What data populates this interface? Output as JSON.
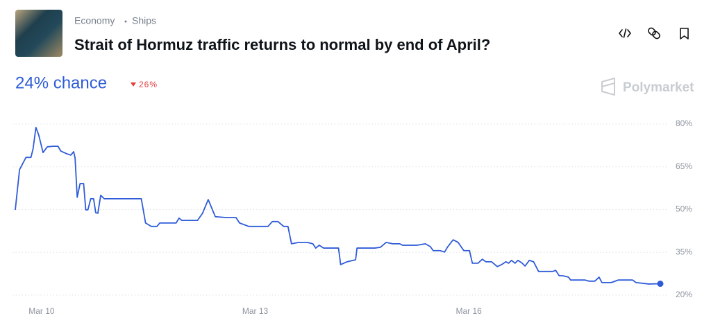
{
  "breadcrumbs": [
    "Economy",
    "Ships"
  ],
  "brand": "Polymarket",
  "chart_data": {
    "type": "line",
    "title": "Strait of Hormuz traffic returns to normal by end of April?",
    "current": {
      "value": 24,
      "label": "24% chance"
    },
    "change": {
      "value": 26,
      "label": "26%",
      "direction": "down"
    },
    "color": "#2e5bd8",
    "grid": true,
    "xlim": [
      9.63,
      18.69
    ],
    "xticks": [
      {
        "value": 10,
        "label": "Mar 10"
      },
      {
        "value": 13,
        "label": "Mar 13"
      },
      {
        "value": 16,
        "label": "Mar 16"
      }
    ],
    "ylim": [
      20,
      80
    ],
    "yticks": [
      {
        "value": 20,
        "label": "20%"
      },
      {
        "value": 35,
        "label": "35%"
      },
      {
        "value": 50,
        "label": "50%"
      },
      {
        "value": 65,
        "label": "65%"
      },
      {
        "value": 80,
        "label": "80%"
      }
    ],
    "x": [
      9.63,
      9.69,
      9.73,
      9.78,
      9.85,
      9.88,
      9.92,
      9.96,
      10.02,
      10.08,
      10.16,
      10.23,
      10.27,
      10.35,
      10.41,
      10.45,
      10.47,
      10.5,
      10.54,
      10.59,
      10.62,
      10.65,
      10.69,
      10.73,
      10.76,
      10.79,
      10.83,
      10.88,
      11.12,
      11.37,
      11.4,
      11.46,
      11.54,
      11.62,
      11.66,
      11.89,
      11.93,
      11.97,
      12.19,
      12.26,
      12.34,
      12.38,
      12.44,
      12.59,
      12.73,
      12.78,
      12.91,
      13.18,
      13.24,
      13.32,
      13.4,
      13.46,
      13.51,
      13.61,
      13.73,
      13.81,
      13.85,
      13.9,
      13.96,
      14.17,
      14.2,
      14.29,
      14.41,
      14.43,
      14.68,
      14.76,
      14.84,
      14.93,
      15.03,
      15.07,
      15.27,
      15.39,
      15.46,
      15.5,
      15.6,
      15.66,
      15.7,
      15.78,
      15.85,
      15.93,
      16.01,
      16.05,
      16.13,
      16.19,
      16.24,
      16.32,
      16.4,
      16.46,
      16.52,
      16.56,
      16.6,
      16.65,
      16.69,
      16.75,
      16.79,
      16.85,
      16.91,
      16.98,
      17.12,
      17.18,
      17.22,
      17.27,
      17.32,
      17.4,
      17.43,
      17.63,
      17.69,
      17.77,
      17.83,
      17.87,
      18.0,
      18.1,
      18.3,
      18.35,
      18.53,
      18.69
    ],
    "values": [
      49.9,
      64.0,
      65.9,
      68.3,
      68.3,
      71.3,
      78.8,
      76.1,
      70.0,
      72.0,
      72.2,
      72.2,
      70.5,
      69.6,
      69.1,
      70.3,
      68.1,
      54.3,
      59.1,
      59.1,
      49.9,
      49.9,
      53.8,
      53.8,
      48.9,
      48.7,
      55.0,
      53.8,
      53.8,
      53.8,
      53.8,
      45.3,
      44.1,
      44.1,
      45.3,
      45.3,
      47.0,
      46.2,
      46.2,
      48.7,
      53.5,
      51.1,
      47.5,
      47.2,
      47.2,
      45.3,
      44.1,
      44.1,
      45.8,
      45.8,
      44.1,
      44.1,
      38.0,
      38.5,
      38.5,
      38.0,
      36.5,
      37.5,
      36.5,
      36.5,
      30.7,
      31.7,
      32.4,
      36.5,
      36.5,
      36.8,
      38.5,
      38.0,
      38.0,
      37.5,
      37.5,
      38.0,
      37.0,
      35.6,
      35.6,
      35.1,
      36.8,
      39.4,
      38.5,
      35.6,
      35.6,
      31.2,
      31.2,
      32.6,
      31.7,
      31.7,
      30.0,
      30.7,
      31.7,
      31.2,
      32.2,
      31.2,
      32.2,
      31.2,
      30.2,
      32.2,
      31.7,
      28.3,
      28.3,
      28.3,
      28.7,
      26.8,
      26.8,
      26.3,
      25.3,
      25.3,
      24.9,
      24.9,
      26.3,
      24.4,
      24.4,
      25.3,
      25.3,
      24.4,
      23.9,
      24
    ]
  }
}
